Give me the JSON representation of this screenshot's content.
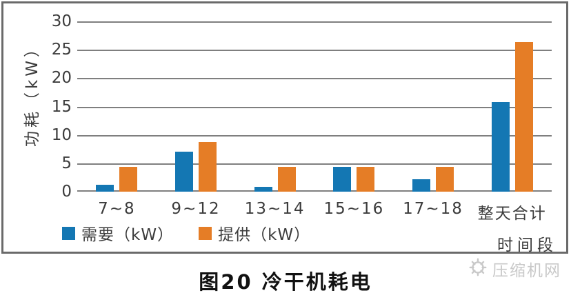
{
  "chart_data": {
    "type": "bar",
    "title": "",
    "categories": [
      "7~8",
      "9~12",
      "13~14",
      "15~16",
      "17~18",
      "整天合计"
    ],
    "series": [
      {
        "name": "需要（kW）",
        "color": "#1477b3",
        "values": [
          1.2,
          7.0,
          0.9,
          4.4,
          2.2,
          15.8
        ]
      },
      {
        "name": "提供（kW）",
        "color": "#e57d26",
        "values": [
          4.4,
          8.8,
          4.4,
          4.4,
          4.4,
          26.4
        ]
      }
    ],
    "xlabel": "时间段",
    "ylabel": "功耗（kW）",
    "ylim": [
      0,
      30
    ],
    "ytick_step": 5,
    "grid": true,
    "legend_position": "bottom-left"
  },
  "caption": "图20 冷干机耗电",
  "watermark": {
    "text": "压缩机网",
    "icon": "gear-icon"
  },
  "colors": {
    "grid": "#7f7f7f",
    "frame": "#6a6a6a",
    "text": "#3c3c3c",
    "watermark": "#c9c9c9"
  }
}
